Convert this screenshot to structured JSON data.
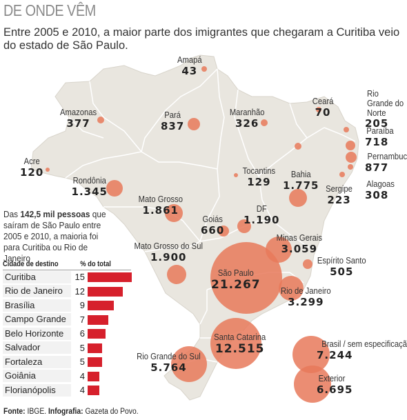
{
  "header": {
    "title": "DE ONDE VÊM",
    "subtitle": "Entre 2005 e 2010, a maior parte dos imigrantes que chegaram a Curitiba veio do estado de São Paulo."
  },
  "colors": {
    "bubble": "#e8795a",
    "map_fill": "#e9e6df",
    "map_border": "#ffffff",
    "bar": "#d6202c"
  },
  "states": [
    {
      "id": "amapa",
      "name": "Amapá",
      "value": "43"
    },
    {
      "id": "amazonas",
      "name": "Amazonas",
      "value": "377"
    },
    {
      "id": "para",
      "name": "Pará",
      "value": "837"
    },
    {
      "id": "maranhao",
      "name": "Maranhão",
      "value": "326"
    },
    {
      "id": "ceara",
      "name": "Ceará",
      "value": "70"
    },
    {
      "id": "rn",
      "name": "Rio Grande do Norte",
      "value": "205"
    },
    {
      "id": "paraiba",
      "name": "Paraíba",
      "value": "718"
    },
    {
      "id": "pernambuco",
      "name": "Pernambuco",
      "value": "877"
    },
    {
      "id": "alagoas",
      "name": "Alagoas",
      "value": "308"
    },
    {
      "id": "sergipe",
      "name": "Sergipe",
      "value": "223"
    },
    {
      "id": "bahia",
      "name": "Bahia",
      "value": "1.775"
    },
    {
      "id": "tocantins",
      "name": "Tocantins",
      "value": "129"
    },
    {
      "id": "acre",
      "name": "Acre",
      "value": "120"
    },
    {
      "id": "rondonia",
      "name": "Rondônia",
      "value": "1.345"
    },
    {
      "id": "mt",
      "name": "Mato Grosso",
      "value": "1.861"
    },
    {
      "id": "goias",
      "name": "Goiás",
      "value": "660"
    },
    {
      "id": "df",
      "name": "DF",
      "value": "1.190"
    },
    {
      "id": "mg",
      "name": "Minas Gerais",
      "value": "3.059"
    },
    {
      "id": "es",
      "name": "Espírito Santo",
      "value": "505"
    },
    {
      "id": "ms",
      "name": "Mato Grosso do Sul",
      "value": "1.900"
    },
    {
      "id": "sp",
      "name": "São Paulo",
      "value": "21.267"
    },
    {
      "id": "rj",
      "name": "Rio de Janeiro",
      "value": "3.299"
    },
    {
      "id": "sc",
      "name": "Santa Catarina",
      "value": "12.515"
    },
    {
      "id": "rs",
      "name": "Rio Grande do Sul",
      "value": "5.764"
    },
    {
      "id": "brasil",
      "name": "Brasil / sem especificação",
      "value": "7.244"
    },
    {
      "id": "exterior",
      "name": "Exterior",
      "value": "6.695"
    }
  ],
  "note": {
    "prefix": "Das ",
    "bold": "142,5 mil pessoas",
    "suffix": " que saíram de São Paulo entre 2005 e 2010, a maioria foi para Curitiba ou Rio de Janeiro"
  },
  "table": {
    "col_city": "Cidade de destino",
    "col_pct": "% do total",
    "rows": [
      {
        "city": "Curitiba",
        "pct": 15
      },
      {
        "city": "Rio de Janeiro",
        "pct": 12
      },
      {
        "city": "Brasília",
        "pct": 9
      },
      {
        "city": "Campo Grande",
        "pct": 7
      },
      {
        "city": "Belo Horizonte",
        "pct": 6
      },
      {
        "city": "Salvador",
        "pct": 5
      },
      {
        "city": "Fortaleza",
        "pct": 5
      },
      {
        "city": "Goiânia",
        "pct": 4
      },
      {
        "city": "Florianópolis",
        "pct": 4
      }
    ]
  },
  "source": {
    "label1": "Fonte:",
    "text1": " IBGE. ",
    "label2": "Infografia:",
    "text2": " Gazeta do Povo."
  }
}
